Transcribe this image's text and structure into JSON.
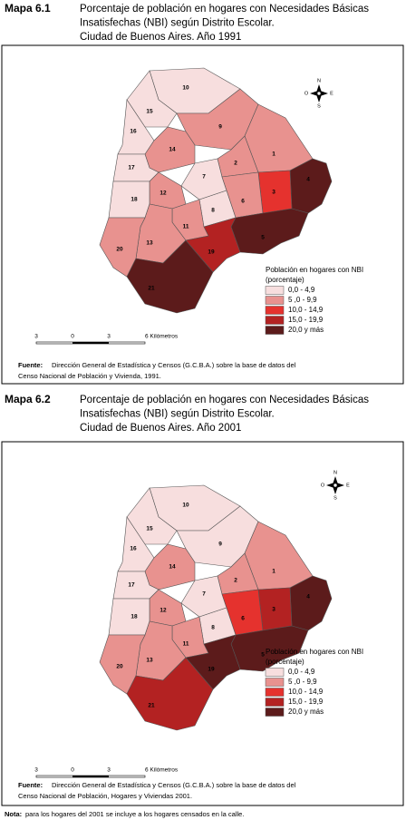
{
  "maps": [
    {
      "label": "Mapa 6.1",
      "title_lines": [
        "Porcentaje de población  en hogares con Necesidades Básicas",
        "Insatisfechas (NBI) según Distrito Escolar.",
        "Ciudad de Buenos Aires. Año 1991"
      ],
      "compass": [
        "N",
        "O",
        "E",
        "S"
      ],
      "legend": {
        "title_lines": [
          "Población en hogares con NBI",
          "(porcentaje)"
        ],
        "classes": [
          {
            "label": "0,0 - 4,9",
            "color": "#f7dede"
          },
          {
            "label": "5 ,0 - 9,9",
            "color": "#e8928f"
          },
          {
            "label": "10,0 - 14,9",
            "color": "#e5322e"
          },
          {
            "label": "15,0 - 19,9",
            "color": "#b32222"
          },
          {
            "label": "20,0 y más",
            "color": "#5c1b1b"
          }
        ]
      },
      "districts": [
        {
          "label": "10",
          "color": "#f7dede"
        },
        {
          "label": "15",
          "color": "#f7dede"
        },
        {
          "label": "16",
          "color": "#f7dede"
        },
        {
          "label": "9",
          "color": "#e8928f"
        },
        {
          "label": "14",
          "color": "#e8928f"
        },
        {
          "label": "1",
          "color": "#e8928f"
        },
        {
          "label": "2",
          "color": "#e8928f"
        },
        {
          "label": "17",
          "color": "#f7dede"
        },
        {
          "label": "7",
          "color": "#f7dede"
        },
        {
          "label": "12",
          "color": "#e8928f"
        },
        {
          "label": "18",
          "color": "#f7dede"
        },
        {
          "label": "4",
          "color": "#5c1b1b"
        },
        {
          "label": "3",
          "color": "#e5322e"
        },
        {
          "label": "6",
          "color": "#e8928f"
        },
        {
          "label": "8",
          "color": "#f7dede"
        },
        {
          "label": "11",
          "color": "#e8928f"
        },
        {
          "label": "13",
          "color": "#e8928f"
        },
        {
          "label": "20",
          "color": "#e8928f"
        },
        {
          "label": "5",
          "color": "#5c1b1b"
        },
        {
          "label": "19",
          "color": "#b32222"
        },
        {
          "label": "21",
          "color": "#5c1b1b"
        }
      ],
      "scale": [
        "3",
        "0",
        "3",
        "6 Kilómetros"
      ],
      "source": {
        "bold": "Fuente:",
        "lines": [
          "Dirección General de Estadística y Censos (G.C.B.A.) sobre la base de datos del",
          "Censo Nacional de Población y Vivienda, 1991."
        ]
      }
    },
    {
      "label": "Mapa  6.2",
      "title_lines": [
        "Porcentaje de población  en hogares con Necesidades Básicas",
        "Insatisfechas (NBI) según Distrito Escolar.",
        "Ciudad de Buenos Aires. Año 2001"
      ],
      "compass": [
        "N",
        "O",
        "E",
        "S"
      ],
      "legend": {
        "title_lines": [
          "Población en hogares con NBI",
          "(porcentaje)"
        ],
        "classes": [
          {
            "label": "0,0 - 4,9",
            "color": "#f7dede"
          },
          {
            "label": "5 ,0 - 9,9",
            "color": "#e8928f"
          },
          {
            "label": "10,0 - 14,9",
            "color": "#e5322e"
          },
          {
            "label": "15,0 - 19,9",
            "color": "#b32222"
          },
          {
            "label": "20,0 y más",
            "color": "#5c1b1b"
          }
        ]
      },
      "districts": [
        {
          "label": "10",
          "color": "#f7dede"
        },
        {
          "label": "15",
          "color": "#f7dede"
        },
        {
          "label": "16",
          "color": "#f7dede"
        },
        {
          "label": "9",
          "color": "#f7dede"
        },
        {
          "label": "14",
          "color": "#e8928f"
        },
        {
          "label": "1",
          "color": "#e8928f"
        },
        {
          "label": "2",
          "color": "#e8928f"
        },
        {
          "label": "17",
          "color": "#f7dede"
        },
        {
          "label": "7",
          "color": "#f7dede"
        },
        {
          "label": "12",
          "color": "#e8928f"
        },
        {
          "label": "18",
          "color": "#f7dede"
        },
        {
          "label": "4",
          "color": "#5c1b1b"
        },
        {
          "label": "3",
          "color": "#b32222"
        },
        {
          "label": "6",
          "color": "#e5322e"
        },
        {
          "label": "8",
          "color": "#f7dede"
        },
        {
          "label": "11",
          "color": "#e8928f"
        },
        {
          "label": "13",
          "color": "#e8928f"
        },
        {
          "label": "20",
          "color": "#e8928f"
        },
        {
          "label": "5",
          "color": "#5c1b1b"
        },
        {
          "label": "19",
          "color": "#5c1b1b"
        },
        {
          "label": "21",
          "color": "#b32222"
        }
      ],
      "scale": [
        "3",
        "0",
        "3",
        "6 Kilómetros"
      ],
      "source": {
        "bold": "Fuente:",
        "lines": [
          "Dirección General de Estadística y Censos (G.C.B.A.) sobre la base de datos del",
          "Censo Nacional de Población, Hogares y Viviendas 2001."
        ]
      }
    }
  ],
  "note": {
    "bold": "Nota:",
    "text": "para los hogares del 2001 se incluye a los hogares censados en la calle."
  }
}
